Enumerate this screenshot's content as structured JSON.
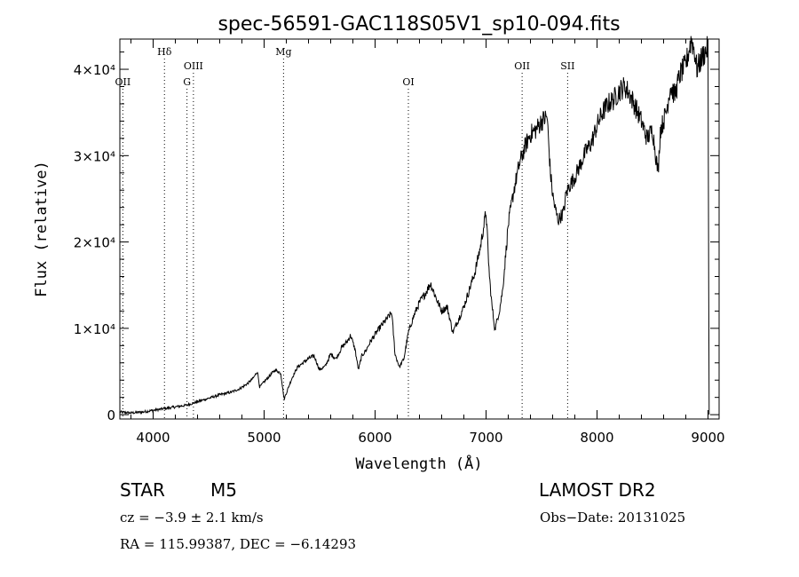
{
  "chart_data": {
    "type": "line",
    "title": "spec-56591-GAC118S05V1_sp10-094.fits",
    "xlabel": "Wavelength (Å)",
    "ylabel": "Flux (relative)",
    "xlim": [
      3700,
      9100
    ],
    "ylim": [
      -500,
      43500
    ],
    "x_ticks": [
      4000,
      5000,
      6000,
      7000,
      8000,
      9000
    ],
    "x_tick_labels": [
      "4000",
      "5000",
      "6000",
      "7000",
      "8000",
      "9000"
    ],
    "y_ticks": [
      0,
      10000,
      20000,
      30000,
      40000
    ],
    "y_tick_labels": [
      "0",
      "1×10⁴",
      "2×10⁴",
      "3×10⁴",
      "4×10⁴"
    ],
    "grid": false,
    "spectral_lines": [
      {
        "name": "OII",
        "x": 3727,
        "row": 3
      },
      {
        "name": "Hδ",
        "x": 4102,
        "row": 1
      },
      {
        "name": "OIII",
        "x": 4363,
        "row": 2
      },
      {
        "name": "G",
        "x": 4305,
        "row": 3
      },
      {
        "name": "Mg",
        "x": 5175,
        "row": 1
      },
      {
        "name": "OI",
        "x": 6300,
        "row": 3
      },
      {
        "name": "OII",
        "x": 7325,
        "row": 2
      },
      {
        "name": "SII",
        "x": 7735,
        "row": 2
      }
    ],
    "series": [
      {
        "x": [
          3700,
          3800,
          3900,
          4000,
          4100,
          4200,
          4300,
          4400,
          4500,
          4600,
          4700,
          4780,
          4850,
          4900,
          4940,
          4960,
          5000,
          5050,
          5100,
          5150,
          5180,
          5200,
          5250,
          5300,
          5350,
          5400,
          5450,
          5500,
          5550,
          5600,
          5650,
          5700,
          5750,
          5780,
          5820,
          5850,
          5880,
          5920,
          5960,
          6000,
          6050,
          6100,
          6150,
          6180,
          6220,
          6260,
          6300,
          6350,
          6400,
          6450,
          6500,
          6550,
          6600,
          6650,
          6700,
          6750,
          6800,
          6850,
          6900,
          6950,
          7000,
          7030,
          7050,
          7080,
          7100,
          7120,
          7150,
          7200,
          7250,
          7300,
          7350,
          7400,
          7450,
          7500,
          7550,
          7580,
          7600,
          7620,
          7650,
          7700,
          7720,
          7750,
          7800,
          7850,
          7900,
          7950,
          8000,
          8050,
          8100,
          8150,
          8200,
          8250,
          8300,
          8350,
          8400,
          8450,
          8500,
          8520,
          8550,
          8570,
          8600,
          8630,
          8660,
          8700,
          8750,
          8800,
          8850,
          8880,
          8900,
          8950,
          9000,
          9010
        ],
        "values": [
          300,
          200,
          300,
          500,
          700,
          900,
          1100,
          1500,
          1900,
          2300,
          2600,
          3000,
          3600,
          4200,
          5000,
          3200,
          3800,
          4500,
          5200,
          4800,
          1800,
          2500,
          4200,
          5500,
          6000,
          6500,
          6800,
          5200,
          5600,
          7000,
          6500,
          7800,
          8500,
          9200,
          7500,
          5200,
          6800,
          7500,
          8500,
          9300,
          10200,
          11000,
          11800,
          7000,
          5500,
          6500,
          9500,
          11500,
          13000,
          14000,
          15200,
          13500,
          12000,
          12500,
          9500,
          11000,
          12500,
          14500,
          16500,
          19500,
          23500,
          16000,
          13000,
          9800,
          11000,
          12000,
          14500,
          22000,
          26000,
          29000,
          31000,
          32500,
          33000,
          34000,
          34500,
          28000,
          25500,
          24000,
          22500,
          23500,
          25500,
          26500,
          27500,
          29000,
          30500,
          31500,
          33500,
          35000,
          36000,
          36500,
          37500,
          38000,
          37000,
          35500,
          34000,
          32000,
          33000,
          31000,
          28000,
          33000,
          34000,
          35500,
          38000,
          37000,
          39500,
          40500,
          43500,
          42000,
          40000,
          41500,
          42500,
          0
        ]
      }
    ]
  },
  "info": {
    "object_class": "STAR",
    "subclass": "M5",
    "survey": "LAMOST DR2",
    "cz": "cz = −3.9 ± 2.1 km/s",
    "obs_date": "Obs−Date: 20131025",
    "coords": "RA = 115.99387, DEC =  −6.14293"
  }
}
